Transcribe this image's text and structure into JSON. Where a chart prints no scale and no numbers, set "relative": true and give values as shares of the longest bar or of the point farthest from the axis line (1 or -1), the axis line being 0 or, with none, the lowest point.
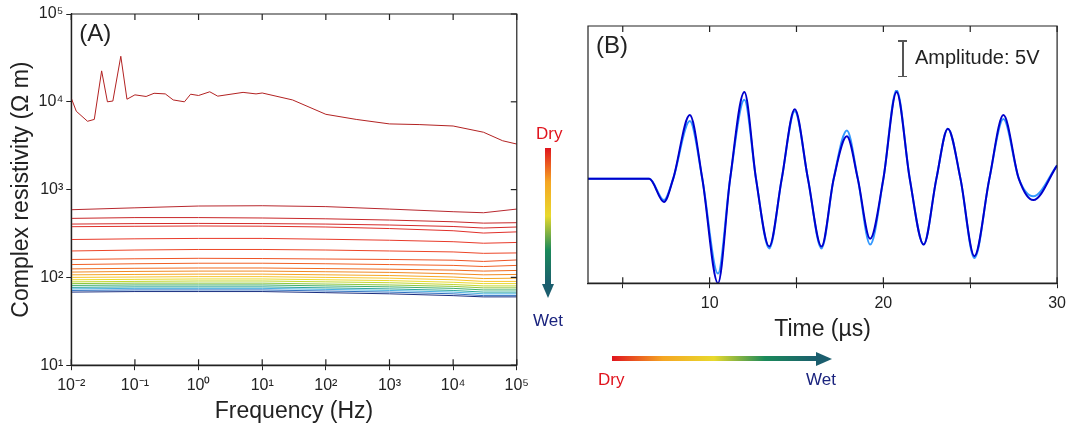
{
  "chart_data": [
    {
      "type": "line",
      "title": "(A)",
      "xlabel": "Frequency (Hz)",
      "ylabel": "Complex resistivity (Ω m)",
      "log": "xy",
      "grid": false,
      "legend": false,
      "marker": "none",
      "xlim": [
        0.01,
        100000
      ],
      "ylim": [
        10,
        100000
      ],
      "xticks": [
        {
          "value": 0.01,
          "label": "10⁻²"
        },
        {
          "value": 0.1,
          "label": "10⁻¹"
        },
        {
          "value": 1,
          "label": "10⁰"
        },
        {
          "value": 10,
          "label": "10¹"
        },
        {
          "value": 100,
          "label": "10²"
        },
        {
          "value": 1000,
          "label": "10³"
        },
        {
          "value": 10000,
          "label": "10⁴"
        },
        {
          "value": 100000,
          "label": "10⁵"
        }
      ],
      "yticks": [
        {
          "value": 10,
          "label": "10¹"
        },
        {
          "value": 100,
          "label": "10²"
        },
        {
          "value": 1000,
          "label": "10³"
        },
        {
          "value": 10000,
          "label": "10⁴"
        },
        {
          "value": 100000,
          "label": "10⁵"
        }
      ],
      "x": [
        0.01,
        0.1,
        1,
        10,
        100,
        1000,
        10000,
        30000,
        100000
      ],
      "annotations": [
        "Dry",
        "Wet"
      ],
      "series": [
        {
          "color": "#b22222",
          "x": [
            0.01,
            0.012,
            0.018,
            0.023,
            0.03,
            0.037,
            0.045,
            0.06,
            0.075,
            0.1,
            0.15,
            0.2,
            0.3,
            0.4,
            0.6,
            0.75,
            1,
            1.5,
            2,
            5,
            8,
            10,
            30,
            100,
            300,
            1000,
            3000,
            10000,
            30000,
            60000,
            100000
          ],
          "values": [
            11000,
            7800,
            6000,
            6300,
            22500,
            10000,
            10200,
            33000,
            10700,
            12000,
            11500,
            12500,
            12300,
            10500,
            10000,
            12200,
            11800,
            13000,
            11600,
            12800,
            12300,
            12600,
            10500,
            7200,
            6300,
            5600,
            5500,
            5300,
            4500,
            3600,
            3300
          ]
        },
        {
          "color": "#b8282e",
          "values": [
            590,
            620,
            650,
            655,
            640,
            600,
            560,
            545,
            600
          ]
        },
        {
          "color": "#c8282a",
          "values": [
            470,
            480,
            480,
            475,
            465,
            450,
            430,
            415,
            420
          ]
        },
        {
          "color": "#d42a2a",
          "values": [
            405,
            410,
            412,
            410,
            405,
            395,
            380,
            365,
            375
          ]
        },
        {
          "color": "#e0302a",
          "values": [
            378,
            382,
            385,
            383,
            375,
            360,
            340,
            320,
            330
          ]
        },
        {
          "color": "#e83a2a",
          "values": [
            270,
            275,
            278,
            278,
            272,
            265,
            255,
            245,
            250
          ]
        },
        {
          "color": "#ec4628",
          "values": [
            200,
            205,
            208,
            208,
            205,
            200,
            195,
            188,
            190
          ]
        },
        {
          "color": "#ee5426",
          "values": [
            160,
            163,
            165,
            164,
            162,
            160,
            157,
            152,
            158
          ]
        },
        {
          "color": "#f06024",
          "values": [
            140,
            143,
            145,
            145,
            143,
            140,
            137,
            133,
            137
          ]
        },
        {
          "color": "#ef6a1f",
          "values": [
            125,
            127,
            128,
            128,
            126,
            124,
            121,
            118,
            120
          ]
        },
        {
          "color": "#f08a24",
          "values": [
            115,
            117,
            118,
            118,
            116,
            114,
            110,
            107,
            108
          ]
        },
        {
          "color": "#f5a623",
          "values": [
            107,
            108,
            109,
            109,
            107,
            105,
            101,
            97,
            98
          ]
        },
        {
          "color": "#f7c52b",
          "values": [
            100,
            101,
            102,
            102,
            100,
            98,
            94,
            90,
            90
          ]
        },
        {
          "color": "#e8d92c",
          "values": [
            94,
            95,
            96,
            96,
            94,
            92,
            88,
            85,
            85
          ]
        },
        {
          "color": "#c2d630",
          "values": [
            89,
            90,
            91,
            91,
            89,
            87,
            83,
            80,
            80
          ]
        },
        {
          "color": "#8cc63f",
          "values": [
            85,
            86,
            86,
            86,
            84,
            82,
            79,
            76,
            76
          ]
        },
        {
          "color": "#3fae6a",
          "values": [
            81,
            82,
            82,
            82,
            80,
            78,
            75,
            72,
            72
          ]
        },
        {
          "color": "#2aa59a",
          "values": [
            77,
            78,
            78,
            78,
            76,
            74,
            71,
            68,
            68
          ]
        },
        {
          "color": "#4ab0e0",
          "values": [
            74,
            75,
            75,
            75,
            73,
            71,
            68,
            65,
            65
          ]
        },
        {
          "color": "#2f6fc0",
          "values": [
            71,
            72,
            72,
            72,
            70,
            68,
            65,
            62,
            62
          ]
        },
        {
          "color": "#1a2f80",
          "values": [
            68,
            69,
            69,
            69,
            67,
            65,
            62,
            60,
            60
          ]
        }
      ]
    },
    {
      "type": "line",
      "title": "(B)",
      "xlabel": "Time (µs)",
      "relative": true,
      "grid": false,
      "legend": false,
      "marker": "none",
      "tick_labels": "x",
      "xlim": [
        3,
        30
      ],
      "xticks": [
        {
          "value": 5,
          "label": null
        },
        10,
        {
          "value": 15,
          "label": null
        },
        20,
        {
          "value": 25,
          "label": null
        },
        30
      ],
      "x": [
        3,
        6.53,
        7.37,
        7.9,
        8.86,
        9.58,
        10.48,
        11.18,
        12.0,
        12.67,
        13.43,
        14.15,
        14.9,
        15.66,
        16.44,
        17.14,
        17.9,
        18.53,
        19.24,
        20.0,
        20.76,
        21.52,
        22.32,
        23.05,
        23.71,
        24.44,
        25.24,
        26.1,
        26.91,
        27.8,
        28.63,
        30
      ],
      "annotations": [
        "Amplitude: 5V",
        "Dry",
        "Wet"
      ],
      "series": [
        {
          "color": "#0000cc",
          "values": [
            0.54,
            0.54,
            0.42,
            0.54,
            0.87,
            0.54,
            0,
            0.54,
            0.99,
            0.54,
            0.19,
            0.54,
            0.9,
            0.54,
            0.19,
            0.54,
            0.76,
            0.54,
            0.23,
            0.54,
            0.99,
            0.54,
            0.2,
            0.54,
            0.8,
            0.54,
            0.14,
            0.54,
            0.87,
            0.54,
            0.43,
            0.61
          ]
        },
        {
          "color": "#3399ff",
          "values": [
            0.54,
            0.54,
            0.43,
            0.54,
            0.84,
            0.54,
            0.05,
            0.54,
            0.95,
            0.54,
            0.18,
            0.54,
            0.89,
            0.54,
            0.18,
            0.54,
            0.79,
            0.54,
            0.2,
            0.54,
            1,
            0.54,
            0.2,
            0.54,
            0.8,
            0.54,
            0.13,
            0.54,
            0.85,
            0.54,
            0.45,
            0.61
          ]
        }
      ]
    }
  ]
}
